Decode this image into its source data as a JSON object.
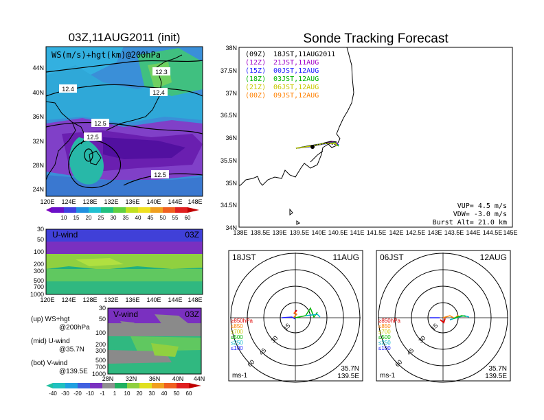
{
  "left_panel": {
    "title": "03Z,11AUG2011 (init)",
    "overlay_label": "WS(m/s)+hgt(km)@200hPa",
    "lat_labels": [
      "44N",
      "40N",
      "36N",
      "32N",
      "28N",
      "24N"
    ],
    "lon_labels": [
      "120E",
      "124E",
      "128E",
      "132E",
      "136E",
      "140E",
      "144E",
      "148E"
    ],
    "contour_labels": [
      "12.3",
      "12.4",
      "12.4",
      "12.5",
      "12.5",
      "12.5"
    ],
    "colorbar_labels": [
      "10",
      "15",
      "20",
      "25",
      "30",
      "35",
      "40",
      "45",
      "50",
      "55",
      "60"
    ]
  },
  "u_wind_panel": {
    "label": "U-wind",
    "time": "03Z",
    "pressure_labels": [
      "30",
      "50",
      "100",
      "200",
      "300",
      "500",
      "700",
      "1000"
    ],
    "lon_labels": [
      "120E",
      "124E",
      "128E",
      "132E",
      "136E",
      "140E",
      "144E",
      "148E"
    ]
  },
  "v_wind_panel": {
    "label": "V-wind",
    "time": "03Z",
    "pressure_labels": [
      "30",
      "50",
      "100",
      "200",
      "300",
      "500",
      "700",
      "1000"
    ],
    "lat_labels": [
      "28N",
      "32N",
      "36N",
      "40N",
      "44N"
    ]
  },
  "legend": {
    "up": "(up) WS+hgt",
    "up2": "@200hPa",
    "mid": "(mid) U-wind",
    "mid2": "@35.7N",
    "bot": "(bot) V-wind",
    "bot2": "@139.5E"
  },
  "bottom_colorbar": [
    "-40",
    "-30",
    "-20",
    "-10",
    "-1",
    "1",
    "10",
    "20",
    "30",
    "40",
    "50",
    "60"
  ],
  "tracking": {
    "title": "Sonde Tracking Forecast",
    "lat_labels": [
      "38N",
      "37.5N",
      "37N",
      "36.5N",
      "36N",
      "35.5N",
      "35N",
      "34.5N",
      "34N"
    ],
    "lon_labels": [
      "138E",
      "138.5E",
      "139E",
      "139.5E",
      "140E",
      "140.5E",
      "141E",
      "141.5E",
      "142E",
      "142.5E",
      "143E",
      "143.5E",
      "144E",
      "144.5E",
      "145E"
    ],
    "launches": [
      {
        "utc": "(09Z)",
        "jst": "18JST,11AUG2011",
        "color": "#000000"
      },
      {
        "utc": "(12Z)",
        "jst": "21JST,11AUG",
        "color": "#a000c8"
      },
      {
        "utc": "(15Z)",
        "jst": "00JST,12AUG",
        "color": "#2020ff"
      },
      {
        "utc": "(18Z)",
        "jst": "03JST,12AUG",
        "color": "#00b400"
      },
      {
        "utc": "(21Z)",
        "jst": "06JST,12AUG",
        "color": "#c8c800"
      },
      {
        "utc": "(00Z)",
        "jst": "09JST,12AUG",
        "color": "#ff8000"
      }
    ],
    "vup": "VUP= 4.5 m/s",
    "vdw": "VDW= -3.0 m/s",
    "burst": "Burst Alt= 21.0 km"
  },
  "hodo_left": {
    "time": "18JST",
    "date": "11AUG",
    "levels": [
      "≥850hPa",
      "≤850",
      "≤700",
      "≤500",
      "≤250",
      "≤100"
    ],
    "ring_labels": [
      "15",
      "30",
      "45",
      "60"
    ],
    "units": "ms-1",
    "lat": "35.7N",
    "lon": "139.5E"
  },
  "hodo_right": {
    "time": "06JST",
    "date": "12AUG",
    "levels": [
      "≥850hPa",
      "≤850",
      "≤700",
      "≤500",
      "≤250",
      "≤100"
    ],
    "ring_labels": [
      "15",
      "30",
      "45",
      "60"
    ],
    "units": "ms-1",
    "lat": "35.7N",
    "lon": "139.5E"
  }
}
